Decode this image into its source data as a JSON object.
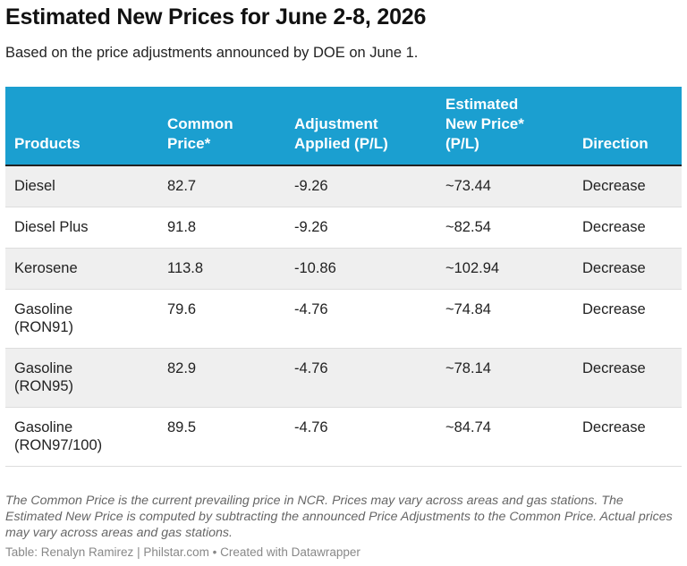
{
  "title": "Estimated New Prices for June 2-8, 2026",
  "subtitle": "Based on the price adjustments announced by DOE on June 1.",
  "colors": {
    "header_background": "#1b9fd0",
    "header_text": "#ffffff",
    "row_alternate": "#efefef"
  },
  "chart_data": {
    "type": "table",
    "columns": [
      {
        "lines": [
          "Products"
        ]
      },
      {
        "lines": [
          "Common",
          "Price*"
        ]
      },
      {
        "lines": [
          "Adjustment",
          "Applied (P/L)"
        ]
      },
      {
        "lines": [
          "Estimated",
          "New Price*",
          "(P/L)"
        ]
      },
      {
        "lines": [
          "Direction"
        ]
      }
    ],
    "rows": [
      {
        "product": [
          "Diesel"
        ],
        "common_price": "82.7",
        "adjustment": "-9.26",
        "estimated_price": "~73.44",
        "direction": "Decrease"
      },
      {
        "product": [
          "Diesel Plus"
        ],
        "common_price": "91.8",
        "adjustment": "-9.26",
        "estimated_price": "~82.54",
        "direction": "Decrease"
      },
      {
        "product": [
          "Kerosene"
        ],
        "common_price": "113.8",
        "adjustment": "-10.86",
        "estimated_price": "~102.94",
        "direction": "Decrease"
      },
      {
        "product": [
          "Gasoline",
          "(RON91)"
        ],
        "common_price": "79.6",
        "adjustment": "-4.76",
        "estimated_price": "~74.84",
        "direction": "Decrease"
      },
      {
        "product": [
          "Gasoline",
          "(RON95)"
        ],
        "common_price": "82.9",
        "adjustment": "-4.76",
        "estimated_price": "~78.14",
        "direction": "Decrease"
      },
      {
        "product": [
          "Gasoline",
          "(RON97/100)"
        ],
        "common_price": "89.5",
        "adjustment": "-4.76",
        "estimated_price": "~84.74",
        "direction": "Decrease"
      }
    ]
  },
  "notes": "The Common Price is the current prevailing price in NCR. Prices may vary across areas and gas stations. The Estimated New Price is computed by subtracting the announced Price Adjustments to the Common Price. Actual prices may vary across areas and gas stations.",
  "source": "Table: Renalyn Ramirez | Philstar.com • Created with Datawrapper"
}
